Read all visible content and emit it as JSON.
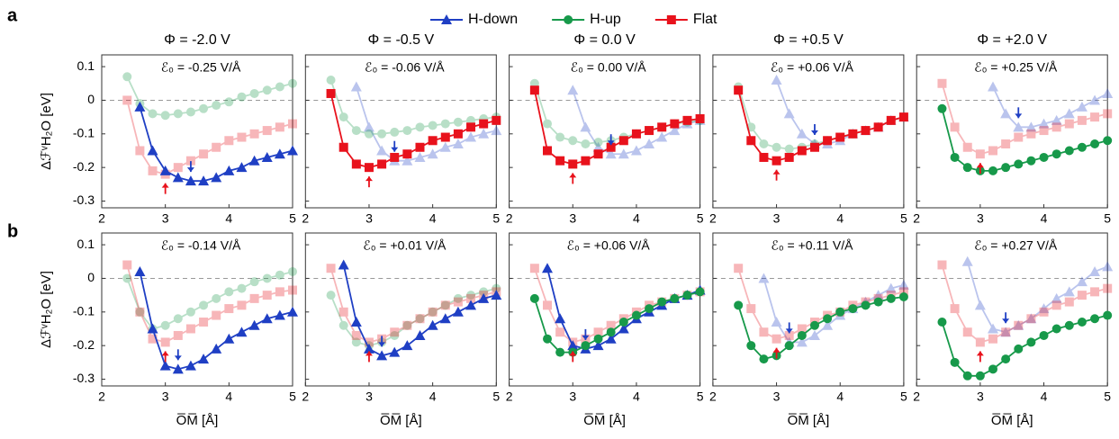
{
  "panel_labels": [
    "a",
    "b"
  ],
  "legend": [
    {
      "name": "H-down",
      "color": "#1f3fc4",
      "marker": "triangle"
    },
    {
      "name": "H-up",
      "color": "#17994a",
      "marker": "circle"
    },
    {
      "name": "Flat",
      "color": "#e8121c",
      "marker": "square"
    }
  ],
  "chart_data": [
    {
      "type": "line",
      "title": "Φ = -2.0 V",
      "annotation": "ℰ₀ = -0.25 V/Å",
      "ylabel": "ΔℱᵛH₂O [eV]",
      "x": [
        2.4,
        2.6,
        2.8,
        3.0,
        3.2,
        3.4,
        3.6,
        3.8,
        4.0,
        4.2,
        4.4,
        4.6,
        4.8,
        5.0
      ],
      "xlim": [
        2,
        5
      ],
      "xticks": [
        2,
        3,
        4,
        5
      ],
      "ylim": [
        -0.32,
        0.135
      ],
      "yticks": [
        0.1,
        0,
        -0.1,
        -0.2,
        -0.3
      ],
      "hline": 0,
      "series": [
        {
          "emphasis": true,
          "values": [
            null,
            -0.02,
            -0.15,
            -0.21,
            -0.23,
            -0.24,
            -0.24,
            -0.23,
            -0.21,
            -0.2,
            -0.18,
            -0.17,
            -0.16,
            -0.15
          ]
        },
        {
          "emphasis": false,
          "values": [
            0.07,
            -0.01,
            -0.04,
            -0.045,
            -0.04,
            -0.035,
            -0.025,
            -0.015,
            -0.005,
            0.01,
            0.02,
            0.03,
            0.04,
            0.05
          ]
        },
        {
          "emphasis": false,
          "values": [
            0.0,
            -0.15,
            -0.21,
            -0.22,
            -0.2,
            -0.18,
            -0.16,
            -0.14,
            -0.12,
            -0.11,
            -0.1,
            -0.09,
            -0.08,
            -0.07
          ]
        }
      ]
    },
    {
      "type": "line",
      "title": "Φ = -0.5 V",
      "annotation": "ℰ₀ = -0.06 V/Å",
      "x": [
        2.4,
        2.6,
        2.8,
        3.0,
        3.2,
        3.4,
        3.6,
        3.8,
        4.0,
        4.2,
        4.4,
        4.6,
        4.8,
        5.0
      ],
      "xlim": [
        2,
        5
      ],
      "xticks": [
        2,
        3,
        4,
        5
      ],
      "ylim": [
        -0.32,
        0.135
      ],
      "yticks": [
        0.1,
        0,
        -0.1,
        -0.2,
        -0.3
      ],
      "hline": 0,
      "series": [
        {
          "emphasis": false,
          "values": [
            null,
            null,
            0.04,
            -0.08,
            -0.15,
            -0.18,
            -0.18,
            -0.17,
            -0.16,
            -0.14,
            -0.13,
            -0.11,
            -0.1,
            -0.09
          ]
        },
        {
          "emphasis": false,
          "values": [
            0.06,
            -0.05,
            -0.09,
            -0.1,
            -0.1,
            -0.095,
            -0.09,
            -0.08,
            -0.075,
            -0.07,
            -0.065,
            -0.06,
            -0.055,
            -0.05
          ]
        },
        {
          "emphasis": true,
          "values": [
            0.02,
            -0.14,
            -0.19,
            -0.2,
            -0.19,
            -0.17,
            -0.16,
            -0.14,
            -0.12,
            -0.11,
            -0.1,
            -0.08,
            -0.07,
            -0.06
          ]
        }
      ]
    },
    {
      "type": "line",
      "title": "Φ = 0.0 V",
      "annotation": "ℰ₀ = 0.00 V/Å",
      "x": [
        2.4,
        2.6,
        2.8,
        3.0,
        3.2,
        3.4,
        3.6,
        3.8,
        4.0,
        4.2,
        4.4,
        4.6,
        4.8,
        5.0
      ],
      "xlim": [
        2,
        5
      ],
      "xticks": [
        2,
        3,
        4,
        5
      ],
      "ylim": [
        -0.32,
        0.135
      ],
      "yticks": [
        0.1,
        0,
        -0.1,
        -0.2,
        -0.3
      ],
      "hline": 0,
      "series": [
        {
          "emphasis": false,
          "values": [
            null,
            null,
            null,
            0.03,
            -0.08,
            -0.14,
            -0.16,
            -0.16,
            -0.15,
            -0.13,
            -0.11,
            -0.09,
            -0.07,
            -0.06
          ]
        },
        {
          "emphasis": false,
          "values": [
            0.05,
            -0.07,
            -0.11,
            -0.12,
            -0.13,
            -0.125,
            -0.12,
            -0.11,
            -0.1,
            -0.09,
            -0.08,
            -0.07,
            -0.065,
            -0.06
          ]
        },
        {
          "emphasis": true,
          "values": [
            0.03,
            -0.15,
            -0.18,
            -0.19,
            -0.18,
            -0.16,
            -0.14,
            -0.12,
            -0.1,
            -0.09,
            -0.08,
            -0.07,
            -0.06,
            -0.055
          ]
        }
      ]
    },
    {
      "type": "line",
      "title": "Φ = +0.5 V",
      "annotation": "ℰ₀ = +0.06 V/Å",
      "x": [
        2.4,
        2.6,
        2.8,
        3.0,
        3.2,
        3.4,
        3.6,
        3.8,
        4.0,
        4.2,
        4.4,
        4.6,
        4.8,
        5.0
      ],
      "xlim": [
        2,
        5
      ],
      "xticks": [
        2,
        3,
        4,
        5
      ],
      "ylim": [
        -0.32,
        0.135
      ],
      "yticks": [
        0.1,
        0,
        -0.1,
        -0.2,
        -0.3
      ],
      "hline": 0,
      "series": [
        {
          "emphasis": false,
          "values": [
            null,
            null,
            null,
            0.06,
            -0.04,
            -0.1,
            -0.13,
            -0.13,
            -0.12,
            -0.1,
            -0.09,
            -0.08,
            -0.06,
            -0.05
          ]
        },
        {
          "emphasis": false,
          "values": [
            0.04,
            -0.08,
            -0.13,
            -0.14,
            -0.145,
            -0.14,
            -0.13,
            -0.12,
            -0.11,
            -0.1,
            -0.09,
            -0.08,
            -0.06,
            -0.05
          ]
        },
        {
          "emphasis": true,
          "values": [
            0.03,
            -0.12,
            -0.17,
            -0.18,
            -0.17,
            -0.15,
            -0.14,
            -0.12,
            -0.11,
            -0.1,
            -0.09,
            -0.08,
            -0.06,
            -0.05
          ]
        }
      ]
    },
    {
      "type": "line",
      "title": "Φ = +2.0 V",
      "annotation": "ℰ₀ = +0.25 V/Å",
      "x": [
        2.4,
        2.6,
        2.8,
        3.0,
        3.2,
        3.4,
        3.6,
        3.8,
        4.0,
        4.2,
        4.4,
        4.6,
        4.8,
        5.0
      ],
      "xlim": [
        2,
        5
      ],
      "xticks": [
        2,
        3,
        4,
        5
      ],
      "ylim": [
        -0.32,
        0.135
      ],
      "yticks": [
        0.1,
        0,
        -0.1,
        -0.2,
        -0.3
      ],
      "hline": 0,
      "series": [
        {
          "emphasis": false,
          "values": [
            null,
            null,
            null,
            null,
            0.04,
            -0.04,
            -0.08,
            -0.08,
            -0.07,
            -0.06,
            -0.04,
            -0.02,
            0.0,
            0.02
          ]
        },
        {
          "emphasis": true,
          "values": [
            -0.025,
            -0.17,
            -0.2,
            -0.21,
            -0.21,
            -0.2,
            -0.19,
            -0.18,
            -0.17,
            -0.16,
            -0.15,
            -0.14,
            -0.13,
            -0.12
          ]
        },
        {
          "emphasis": false,
          "values": [
            0.05,
            -0.08,
            -0.14,
            -0.16,
            -0.15,
            -0.13,
            -0.11,
            -0.1,
            -0.09,
            -0.08,
            -0.07,
            -0.06,
            -0.05,
            -0.04
          ]
        }
      ]
    },
    {
      "type": "line",
      "annotation": "ℰ₀ = -0.14 V/Å",
      "ylabel": "ΔℱᵛH₂O [eV]",
      "xlabel": "O̅M̅ [Å]",
      "x": [
        2.4,
        2.6,
        2.8,
        3.0,
        3.2,
        3.4,
        3.6,
        3.8,
        4.0,
        4.2,
        4.4,
        4.6,
        4.8,
        5.0
      ],
      "xlim": [
        2,
        5
      ],
      "xticks": [
        2,
        3,
        4,
        5
      ],
      "ylim": [
        -0.32,
        0.135
      ],
      "yticks": [
        0.1,
        0,
        -0.1,
        -0.2,
        -0.3
      ],
      "hline": 0,
      "series": [
        {
          "emphasis": true,
          "values": [
            null,
            0.02,
            -0.15,
            -0.26,
            -0.27,
            -0.26,
            -0.24,
            -0.21,
            -0.18,
            -0.16,
            -0.14,
            -0.12,
            -0.11,
            -0.1
          ]
        },
        {
          "emphasis": false,
          "values": [
            0.0,
            -0.1,
            -0.15,
            -0.14,
            -0.12,
            -0.1,
            -0.08,
            -0.06,
            -0.04,
            -0.03,
            -0.01,
            0.0,
            0.01,
            0.02
          ]
        },
        {
          "emphasis": false,
          "values": [
            0.04,
            -0.1,
            -0.18,
            -0.19,
            -0.17,
            -0.15,
            -0.13,
            -0.11,
            -0.09,
            -0.08,
            -0.06,
            -0.05,
            -0.04,
            -0.035
          ]
        }
      ]
    },
    {
      "type": "line",
      "annotation": "ℰ₀ = +0.01 V/Å",
      "xlabel": "O̅M̅ [Å]",
      "x": [
        2.4,
        2.6,
        2.8,
        3.0,
        3.2,
        3.4,
        3.6,
        3.8,
        4.0,
        4.2,
        4.4,
        4.6,
        4.8,
        5.0
      ],
      "xlim": [
        2,
        5
      ],
      "xticks": [
        2,
        3,
        4,
        5
      ],
      "ylim": [
        -0.32,
        0.135
      ],
      "yticks": [
        0.1,
        0,
        -0.1,
        -0.2,
        -0.3
      ],
      "hline": 0,
      "series": [
        {
          "emphasis": true,
          "values": [
            null,
            0.04,
            -0.13,
            -0.21,
            -0.23,
            -0.22,
            -0.2,
            -0.17,
            -0.14,
            -0.12,
            -0.1,
            -0.08,
            -0.06,
            -0.05
          ]
        },
        {
          "emphasis": false,
          "values": [
            -0.05,
            -0.14,
            -0.19,
            -0.2,
            -0.19,
            -0.17,
            -0.14,
            -0.12,
            -0.1,
            -0.08,
            -0.06,
            -0.05,
            -0.04,
            -0.03
          ]
        },
        {
          "emphasis": false,
          "values": [
            0.03,
            -0.1,
            -0.17,
            -0.19,
            -0.18,
            -0.16,
            -0.14,
            -0.12,
            -0.1,
            -0.08,
            -0.07,
            -0.06,
            -0.05,
            -0.04
          ]
        }
      ]
    },
    {
      "type": "line",
      "annotation": "ℰ₀ = +0.06 V/Å",
      "xlabel": "O̅M̅ [Å]",
      "x": [
        2.4,
        2.6,
        2.8,
        3.0,
        3.2,
        3.4,
        3.6,
        3.8,
        4.0,
        4.2,
        4.4,
        4.6,
        4.8,
        5.0
      ],
      "xlim": [
        2,
        5
      ],
      "xticks": [
        2,
        3,
        4,
        5
      ],
      "ylim": [
        -0.32,
        0.135
      ],
      "yticks": [
        0.1,
        0,
        -0.1,
        -0.2,
        -0.3
      ],
      "hline": 0,
      "series": [
        {
          "emphasis": true,
          "values": [
            null,
            0.03,
            -0.12,
            -0.2,
            -0.21,
            -0.2,
            -0.18,
            -0.15,
            -0.12,
            -0.1,
            -0.08,
            -0.06,
            -0.05,
            -0.035
          ]
        },
        {
          "emphasis": true,
          "values": [
            -0.06,
            -0.18,
            -0.22,
            -0.22,
            -0.2,
            -0.18,
            -0.16,
            -0.13,
            -0.11,
            -0.09,
            -0.07,
            -0.06,
            -0.05,
            -0.04
          ]
        },
        {
          "emphasis": false,
          "values": [
            0.03,
            -0.08,
            -0.16,
            -0.19,
            -0.18,
            -0.16,
            -0.14,
            -0.12,
            -0.1,
            -0.08,
            -0.07,
            -0.06,
            -0.05,
            -0.04
          ]
        }
      ]
    },
    {
      "type": "line",
      "annotation": "ℰ₀ = +0.11 V/Å",
      "xlabel": "O̅M̅ [Å]",
      "x": [
        2.4,
        2.6,
        2.8,
        3.0,
        3.2,
        3.4,
        3.6,
        3.8,
        4.0,
        4.2,
        4.4,
        4.6,
        4.8,
        5.0
      ],
      "xlim": [
        2,
        5
      ],
      "xticks": [
        2,
        3,
        4,
        5
      ],
      "ylim": [
        -0.32,
        0.135
      ],
      "yticks": [
        0.1,
        0,
        -0.1,
        -0.2,
        -0.3
      ],
      "hline": 0,
      "series": [
        {
          "emphasis": false,
          "values": [
            null,
            null,
            0.0,
            -0.13,
            -0.19,
            -0.19,
            -0.17,
            -0.14,
            -0.11,
            -0.09,
            -0.07,
            -0.05,
            -0.03,
            -0.02
          ]
        },
        {
          "emphasis": true,
          "values": [
            -0.08,
            -0.2,
            -0.24,
            -0.23,
            -0.2,
            -0.17,
            -0.14,
            -0.12,
            -0.1,
            -0.09,
            -0.08,
            -0.07,
            -0.06,
            -0.055
          ]
        },
        {
          "emphasis": false,
          "values": [
            0.03,
            -0.09,
            -0.16,
            -0.18,
            -0.17,
            -0.15,
            -0.13,
            -0.11,
            -0.1,
            -0.08,
            -0.07,
            -0.06,
            -0.05,
            -0.04
          ]
        }
      ]
    },
    {
      "type": "line",
      "annotation": "ℰ₀ = +0.27 V/Å",
      "xlabel": "O̅M̅ [Å]",
      "x": [
        2.4,
        2.6,
        2.8,
        3.0,
        3.2,
        3.4,
        3.6,
        3.8,
        4.0,
        4.2,
        4.4,
        4.6,
        4.8,
        5.0
      ],
      "xlim": [
        2,
        5
      ],
      "xticks": [
        2,
        3,
        4,
        5
      ],
      "ylim": [
        -0.32,
        0.135
      ],
      "yticks": [
        0.1,
        0,
        -0.1,
        -0.2,
        -0.3
      ],
      "hline": 0,
      "series": [
        {
          "emphasis": false,
          "values": [
            null,
            null,
            0.05,
            -0.08,
            -0.15,
            -0.16,
            -0.14,
            -0.12,
            -0.09,
            -0.06,
            -0.04,
            -0.01,
            0.02,
            0.035
          ]
        },
        {
          "emphasis": true,
          "values": [
            -0.13,
            -0.25,
            -0.29,
            -0.29,
            -0.27,
            -0.24,
            -0.21,
            -0.19,
            -0.17,
            -0.15,
            -0.14,
            -0.13,
            -0.12,
            -0.11
          ]
        },
        {
          "emphasis": false,
          "values": [
            0.04,
            -0.09,
            -0.16,
            -0.19,
            -0.18,
            -0.16,
            -0.14,
            -0.12,
            -0.1,
            -0.08,
            -0.07,
            -0.05,
            -0.04,
            -0.03
          ]
        }
      ]
    }
  ]
}
